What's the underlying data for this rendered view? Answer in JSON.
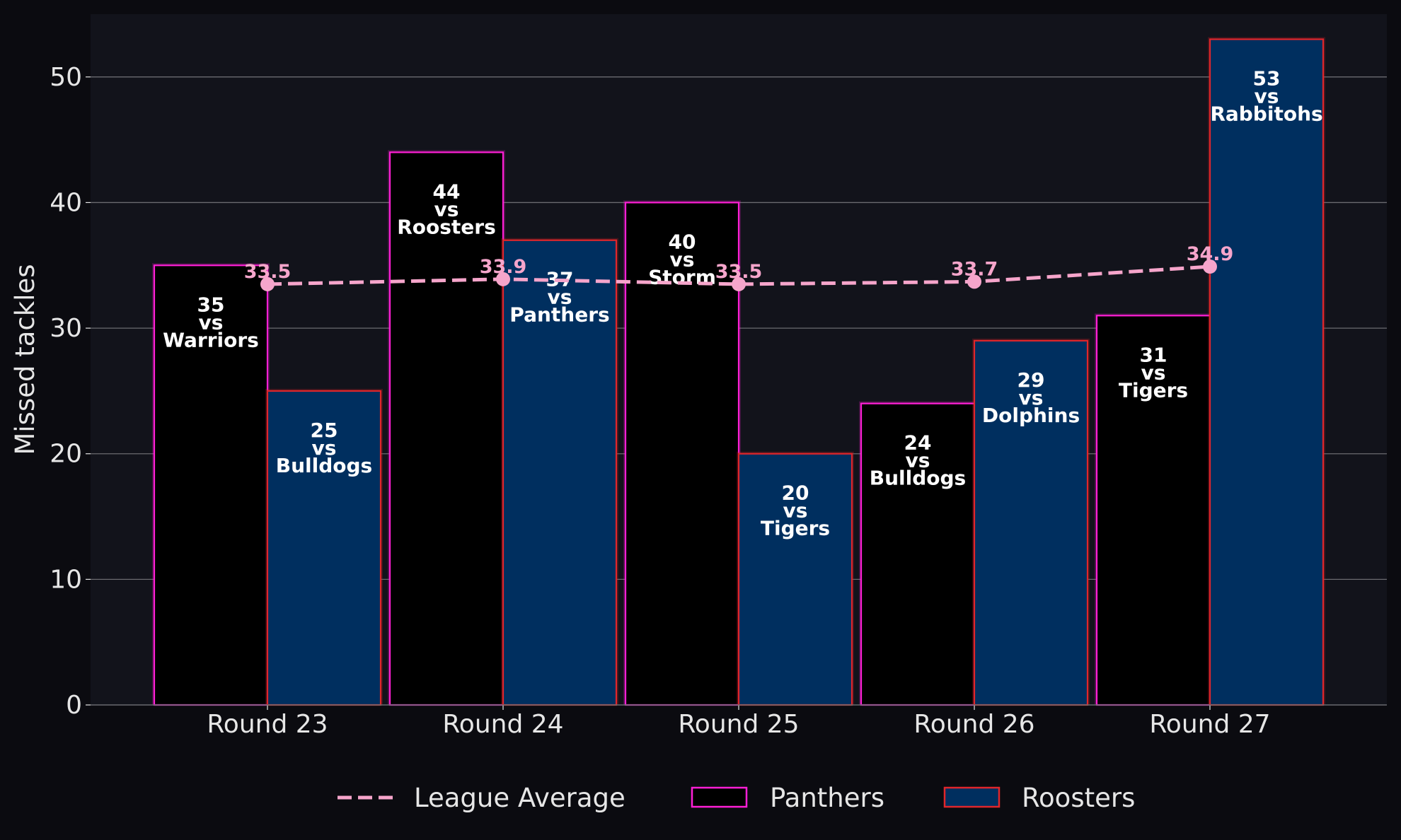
{
  "colors": {
    "page_bg": "#0b0b10",
    "plot_bg": "#12131b",
    "grid": "#6b6b70",
    "tick_text": "#e6e6e6",
    "panthers_fill": "#000000",
    "panthers_edge": "#ff1fd6",
    "roosters_fill": "#002f5f",
    "roosters_edge": "#e0262b",
    "average_line": "#f6a5cb",
    "bar_label": "#ffffff"
  },
  "chart_data": {
    "type": "bar",
    "title": "",
    "xlabel": "",
    "ylabel": "Missed tackles",
    "ylim": [
      0,
      55
    ],
    "yticks": [
      0,
      10,
      20,
      30,
      40,
      50
    ],
    "grid": "horizontal",
    "legend_position": "bottom-center",
    "categories": [
      "Round 23",
      "Round 24",
      "Round 25",
      "Round 26",
      "Round 27"
    ],
    "series": [
      {
        "name": "Panthers",
        "type": "bar",
        "values": [
          35,
          44,
          40,
          24,
          31
        ],
        "opponents": [
          "Warriors",
          "Roosters",
          "Storm",
          "Bulldogs",
          "Tigers"
        ]
      },
      {
        "name": "Roosters",
        "type": "bar",
        "values": [
          25,
          37,
          20,
          29,
          53
        ],
        "opponents": [
          "Bulldogs",
          "Panthers",
          "Tigers",
          "Dolphins",
          "Rabbitohs"
        ]
      },
      {
        "name": "League Average",
        "type": "line",
        "style": "dashed",
        "values": [
          33.5,
          33.9,
          33.5,
          33.7,
          34.9
        ]
      }
    ],
    "bar_label_connector": "vs",
    "legend": [
      "League Average",
      "Panthers",
      "Roosters"
    ]
  }
}
